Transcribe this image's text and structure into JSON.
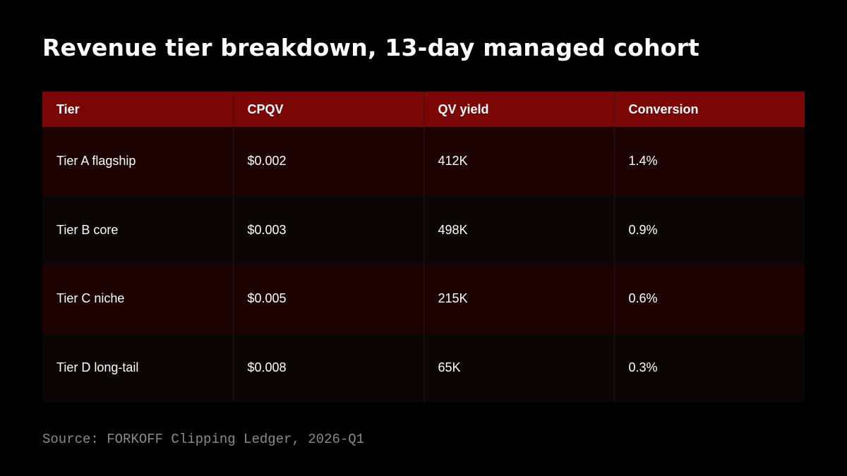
{
  "title": "Revenue tier breakdown, 13-day managed cohort",
  "table": {
    "headers": [
      "Tier",
      "CPQV",
      "QV yield",
      "Conversion"
    ],
    "rows": [
      [
        "Tier A flagship",
        "$0.002",
        "412K",
        "1.4%"
      ],
      [
        "Tier B core",
        "$0.003",
        "498K",
        "0.9%"
      ],
      [
        "Tier C niche",
        "$0.005",
        "215K",
        "0.6%"
      ],
      [
        "Tier D long-tail",
        "$0.008",
        "65K",
        "0.3%"
      ]
    ]
  },
  "source": "Source: FORKOFF Clipping Ledger, 2026-Q1",
  "colors": {
    "background": "#000000",
    "header_bg": "#7a0606",
    "row_odd_bg": "#1d0202",
    "row_even_bg": "#0c0505",
    "text": "#ffffff",
    "source_text": "#8a8a8a"
  }
}
